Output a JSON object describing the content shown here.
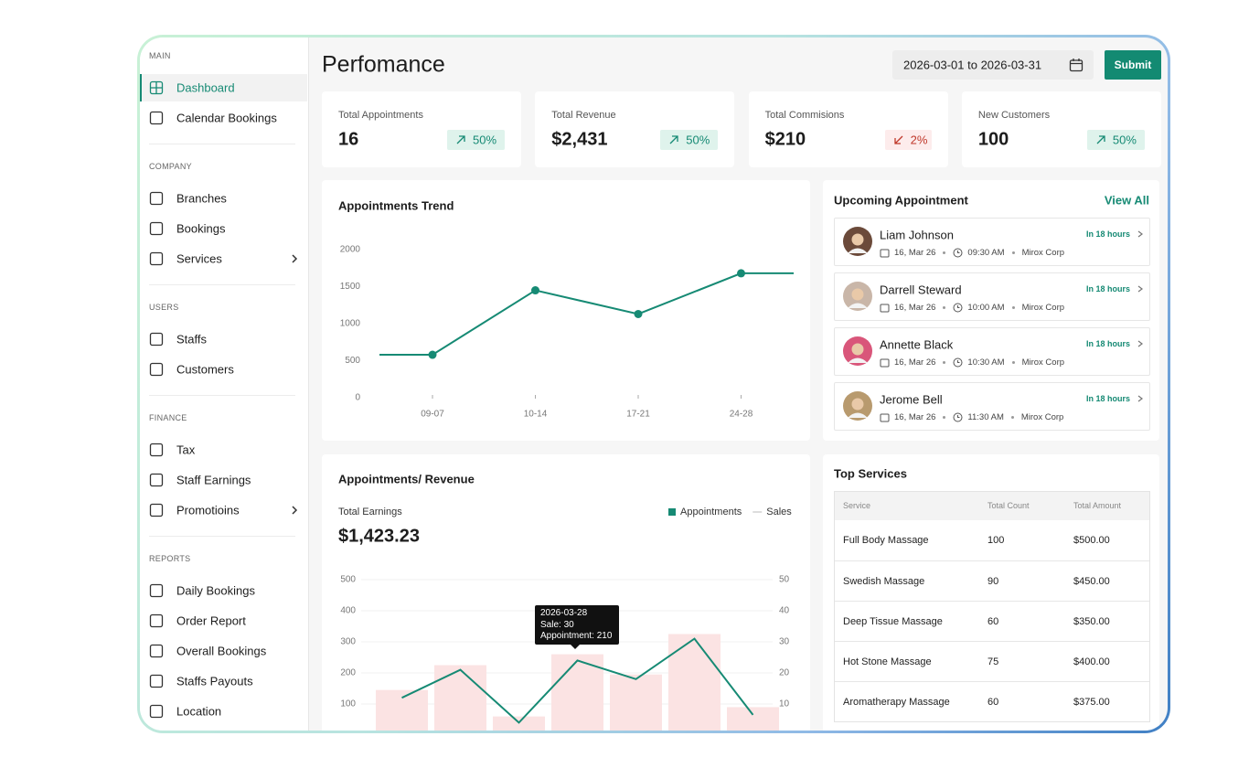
{
  "sidebar": {
    "sections": [
      {
        "title": "MAIN",
        "items": [
          {
            "label": "Dashboard",
            "active": true
          },
          {
            "label": "Calendar Bookings"
          }
        ]
      },
      {
        "title": "COMPANY",
        "items": [
          {
            "label": "Branches"
          },
          {
            "label": "Bookings"
          },
          {
            "label": "Services",
            "submenu": true
          }
        ]
      },
      {
        "title": "USERS",
        "items": [
          {
            "label": "Staffs"
          },
          {
            "label": "Customers"
          }
        ]
      },
      {
        "title": "FINANCE",
        "items": [
          {
            "label": "Tax"
          },
          {
            "label": "Staff Earnings"
          },
          {
            "label": "Promotioins",
            "submenu": true
          }
        ]
      },
      {
        "title": "REPORTS",
        "items": [
          {
            "label": "Daily Bookings"
          },
          {
            "label": "Order Report"
          },
          {
            "label": "Overall Bookings"
          },
          {
            "label": "Staffs Payouts"
          },
          {
            "label": "Location"
          }
        ]
      }
    ]
  },
  "header": {
    "title": "Perfomance",
    "date_range": "2026-03-01 to 2026-03-31",
    "submit": "Submit"
  },
  "stats": [
    {
      "label": "Total Appointments",
      "value": "16",
      "change": "50%",
      "trend": "up"
    },
    {
      "label": "Total Revenue",
      "value": "$2,431",
      "change": "50%",
      "trend": "up"
    },
    {
      "label": "Total Commisions",
      "value": "$210",
      "change": "2%",
      "trend": "down"
    },
    {
      "label": "New Customers",
      "value": "100",
      "change": "50%",
      "trend": "up"
    }
  ],
  "upcoming": {
    "title": "Upcoming Appointment",
    "view_all": "View All",
    "items": [
      {
        "name": "Liam Johnson",
        "date": "16, Mar 26",
        "time": "09:30 AM",
        "company": "Mirox Corp",
        "eta": "In 18 hours"
      },
      {
        "name": "Darrell Steward",
        "date": "16, Mar 26",
        "time": "10:00 AM",
        "company": "Mirox Corp",
        "eta": "In 18 hours"
      },
      {
        "name": "Annette Black",
        "date": "16, Mar 26",
        "time": "10:30 AM",
        "company": "Mirox Corp",
        "eta": "In 18 hours"
      },
      {
        "name": "Jerome Bell",
        "date": "16, Mar 26",
        "time": "11:30 AM",
        "company": "Mirox Corp",
        "eta": "In 18 hours"
      }
    ]
  },
  "top_services": {
    "title": "Top Services",
    "columns": [
      "Service",
      "Total Count",
      "Total Amount"
    ],
    "rows": [
      [
        "Full Body Massage",
        "100",
        "$500.00"
      ],
      [
        "Swedish Massage",
        "90",
        "$450.00"
      ],
      [
        "Deep Tissue Massage",
        "60",
        "$350.00"
      ],
      [
        "Hot Stone Massage",
        "75",
        "$400.00"
      ],
      [
        "Aromatherapy Massage",
        "60",
        "$375.00"
      ]
    ]
  },
  "chart_data": [
    {
      "type": "line",
      "title": "Appointments Trend",
      "categories": [
        null,
        "09-07",
        "10-14",
        "17-21",
        "24-28",
        null
      ],
      "values": [
        580,
        580,
        1450,
        1130,
        1680,
        1680
      ],
      "color": "#168a74",
      "ylim": [
        0,
        2000
      ],
      "yticks": [
        0,
        500,
        1000,
        1500,
        2000
      ],
      "grid": false
    },
    {
      "type": "combo",
      "title": "Appointments/ Revenue",
      "summary_label": "Total Earnings",
      "summary_value": "$1,423.23",
      "categories": [
        null,
        null,
        null,
        null,
        null,
        null,
        null
      ],
      "series": [
        {
          "name": "Appointments",
          "type": "bar",
          "color": "#fbe3e3",
          "values": [
            145,
            225,
            60,
            260,
            195,
            325,
            90
          ]
        },
        {
          "name": "Sales",
          "type": "line",
          "axis": "y2",
          "color": "#168a74",
          "values": [
            12,
            21,
            4,
            24,
            18,
            31,
            6.5
          ]
        }
      ],
      "ylim": [
        0,
        500
      ],
      "yticks": [
        100,
        200,
        300,
        400,
        500
      ],
      "y2lim": [
        0,
        50
      ],
      "y2ticks": [
        10,
        20,
        30,
        40,
        50
      ],
      "grid": true,
      "legend": "top-right",
      "tooltip": {
        "title": "2026-03-28",
        "lines": [
          "Sale: 30",
          "Appointment: 210"
        ]
      }
    }
  ]
}
